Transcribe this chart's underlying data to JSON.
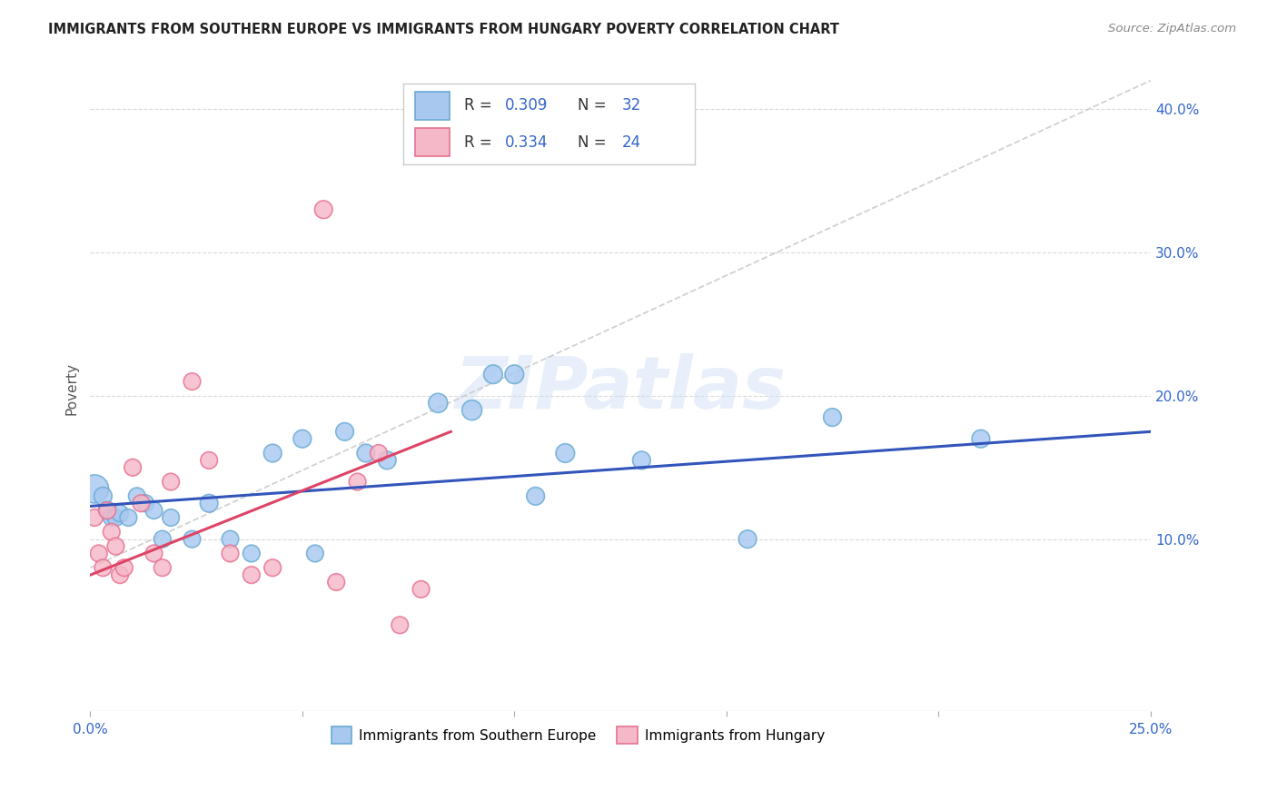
{
  "title": "IMMIGRANTS FROM SOUTHERN EUROPE VS IMMIGRANTS FROM HUNGARY POVERTY CORRELATION CHART",
  "source": "Source: ZipAtlas.com",
  "ylabel": "Poverty",
  "watermark": "ZIPatlas",
  "blue_R": 0.309,
  "blue_N": 32,
  "pink_R": 0.334,
  "pink_N": 24,
  "blue_color": "#a8c8f0",
  "blue_edge": "#6aaad4",
  "pink_color": "#f5b8c8",
  "pink_edge": "#e87090",
  "trend_blue": "#3355bb",
  "trend_pink": "#dd4466",
  "trend_gray": "#cccccc",
  "xlim": [
    0.0,
    0.25
  ],
  "ylim": [
    -0.02,
    0.43
  ],
  "xticks_labeled": [
    0.0,
    0.25
  ],
  "xticks_minor": [
    0.05,
    0.1,
    0.15,
    0.2
  ],
  "yticks": [
    0.1,
    0.2,
    0.3,
    0.4
  ],
  "blue_scatter_x": [
    0.001,
    0.003,
    0.004,
    0.005,
    0.006,
    0.007,
    0.009,
    0.011,
    0.013,
    0.015,
    0.017,
    0.019,
    0.024,
    0.028,
    0.033,
    0.038,
    0.043,
    0.05,
    0.053,
    0.06,
    0.065,
    0.07,
    0.082,
    0.09,
    0.095,
    0.1,
    0.105,
    0.112,
    0.13,
    0.155,
    0.175,
    0.21
  ],
  "blue_scatter_y": [
    0.135,
    0.13,
    0.12,
    0.115,
    0.115,
    0.118,
    0.115,
    0.13,
    0.125,
    0.12,
    0.1,
    0.115,
    0.1,
    0.125,
    0.1,
    0.09,
    0.16,
    0.17,
    0.09,
    0.175,
    0.16,
    0.155,
    0.195,
    0.19,
    0.215,
    0.215,
    0.13,
    0.16,
    0.155,
    0.1,
    0.185,
    0.17
  ],
  "blue_scatter_size": [
    500,
    200,
    200,
    180,
    180,
    180,
    180,
    180,
    180,
    180,
    180,
    180,
    180,
    200,
    180,
    180,
    200,
    200,
    180,
    200,
    200,
    200,
    230,
    250,
    220,
    220,
    200,
    220,
    200,
    200,
    200,
    200
  ],
  "pink_scatter_x": [
    0.001,
    0.002,
    0.003,
    0.004,
    0.005,
    0.006,
    0.007,
    0.008,
    0.01,
    0.012,
    0.015,
    0.017,
    0.019,
    0.024,
    0.028,
    0.033,
    0.038,
    0.043,
    0.055,
    0.058,
    0.063,
    0.068,
    0.073,
    0.078
  ],
  "pink_scatter_y": [
    0.115,
    0.09,
    0.08,
    0.12,
    0.105,
    0.095,
    0.075,
    0.08,
    0.15,
    0.125,
    0.09,
    0.08,
    0.14,
    0.21,
    0.155,
    0.09,
    0.075,
    0.08,
    0.33,
    0.07,
    0.14,
    0.16,
    0.04,
    0.065
  ],
  "pink_scatter_size": [
    180,
    180,
    180,
    180,
    180,
    180,
    180,
    180,
    180,
    180,
    180,
    180,
    180,
    180,
    180,
    180,
    180,
    180,
    200,
    180,
    180,
    180,
    180,
    180
  ],
  "gray_line_x": [
    0.0,
    0.25
  ],
  "gray_line_y": [
    0.08,
    0.42
  ],
  "blue_line_x": [
    0.0,
    0.25
  ],
  "blue_line_y": [
    0.123,
    0.175
  ],
  "pink_line_x": [
    0.0,
    0.085
  ],
  "pink_line_y": [
    0.075,
    0.175
  ],
  "legend_label_blue": "Immigrants from Southern Europe",
  "legend_label_pink": "Immigrants from Hungary",
  "background_color": "#ffffff",
  "title_color": "#222222",
  "label_color": "#3366cc",
  "axis_label_color": "#555555"
}
